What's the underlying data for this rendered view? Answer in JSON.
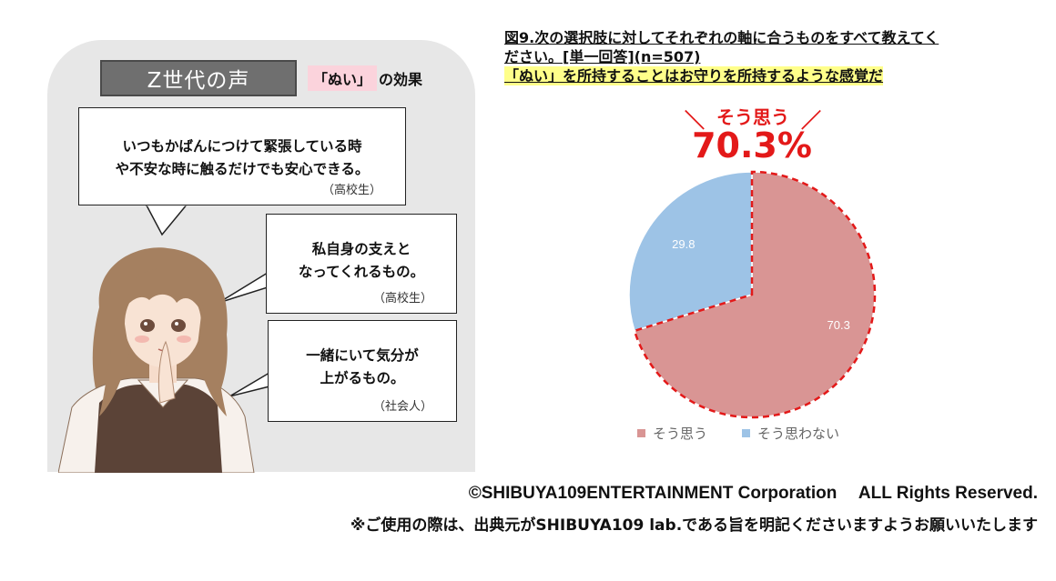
{
  "left_panel": {
    "header": "Z世代の声",
    "effect_highlight": "「ぬい」",
    "effect_rest": "の効果",
    "quotes": [
      {
        "line1": "いつもかばんにつけて緊張している時",
        "line2": "や不安な時に触るだけでも安心できる。",
        "who": "（高校生）"
      },
      {
        "line1": "私自身の支えと",
        "line2": "なってくれるもの。",
        "who": "（高校生）"
      },
      {
        "line1": "一緒にいて気分が",
        "line2": "上がるもの。",
        "who": "（社会人）"
      }
    ]
  },
  "figure": {
    "title_line1": "図9.次の選択肢に対してそれぞれの軸に合うものをすべて教えてく",
    "title_line2": "ださい。[単一回答](n=507)",
    "title_line3": "「ぬい」を所持することはお守りを所持するような感覚だ",
    "callout_label": "そう思う",
    "callout_value": "70.3%"
  },
  "chart_data": {
    "type": "pie",
    "slices": [
      {
        "label": "そう思う",
        "value": 70.3,
        "color": "#d99594"
      },
      {
        "label": "そう思わない",
        "value": 29.8,
        "color": "#9dc3e6"
      }
    ],
    "start_angle": "12 o'clock, clockwise",
    "highlight": "そう思う (red dashed outline)",
    "legend_position": "bottom"
  },
  "footer": {
    "copyright": "©SHIBUYA109ENTERTAINMENT Corporation　 ALL Rights Reserved.",
    "notice": "※ご使用の際は、出典元がSHIBUYA109 lab.である旨を明記くださいますようお願いいたします"
  }
}
